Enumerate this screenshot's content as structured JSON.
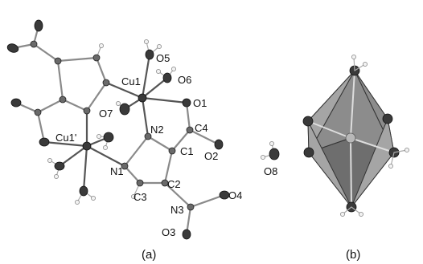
{
  "figure": {
    "panel_a": {
      "caption": "(a)",
      "atom_labels": {
        "cu1": "Cu1",
        "cu1p": "Cu1'",
        "o1": "O1",
        "o2": "O2",
        "o4": "O4",
        "o3": "O3",
        "o5": "O5",
        "o6": "O6",
        "o7": "O7",
        "o8": "O8",
        "n1": "N1",
        "n2": "N2",
        "n3": "N3",
        "c1": "C1",
        "c2": "C2",
        "c3": "C3",
        "c4": "C4"
      }
    },
    "panel_b": {
      "caption": "(b)"
    }
  }
}
